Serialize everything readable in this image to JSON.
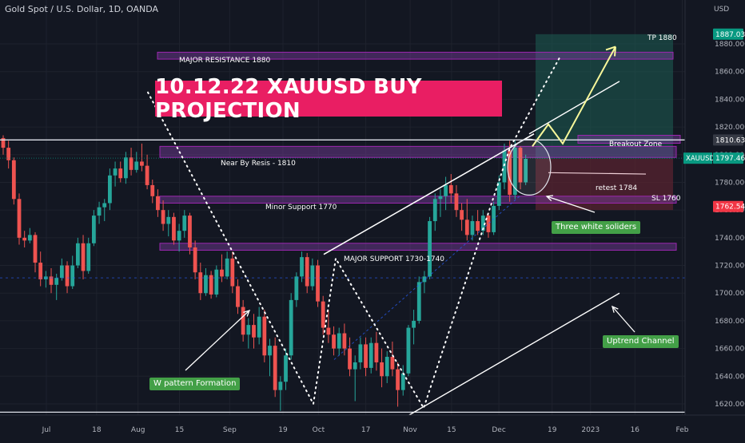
{
  "header": {
    "symbol_title": "Gold Spot / U.S. Dollar, 1D, OANDA"
  },
  "headline": "10.12.22 XAUUSD BUY PROJECTION",
  "price_axis": {
    "currency": "USD",
    "ticks": [
      1620,
      1640,
      1660,
      1680,
      1700,
      1720,
      1740,
      1760,
      1780,
      1800,
      1820,
      1840,
      1860,
      1880
    ],
    "tick_labels": [
      "1620.000",
      "1640.000",
      "1660.000",
      "1680.000",
      "1700.000",
      "1720.000",
      "1740.000",
      "1760.000",
      "1780.000",
      "1800.000",
      "1820.000",
      "1840.000",
      "1860.000",
      "1880.000"
    ],
    "badges": [
      {
        "label": "1887.030",
        "value": 1887.03,
        "color": "#089981"
      },
      {
        "label": "1810.630",
        "value": 1810.63,
        "color": "#363a45"
      },
      {
        "label": "1797.460",
        "value": 1797.46,
        "color": "#089981",
        "prefix": "XAUUSD"
      },
      {
        "label": "1762.546",
        "value": 1762.546,
        "color": "#f23645"
      }
    ]
  },
  "time_axis": {
    "labels": [
      {
        "label": "Jul",
        "day": 0
      },
      {
        "label": "18",
        "day": 17
      },
      {
        "label": "Aug",
        "day": 31
      },
      {
        "label": "15",
        "day": 45
      },
      {
        "label": "Sep",
        "day": 62
      },
      {
        "label": "19",
        "day": 80
      },
      {
        "label": "Oct",
        "day": 92
      },
      {
        "label": "17",
        "day": 108
      },
      {
        "label": "Nov",
        "day": 123
      },
      {
        "label": "15",
        "day": 137
      },
      {
        "label": "Dec",
        "day": 153
      },
      {
        "label": "19",
        "day": 171
      },
      {
        "label": "2023",
        "day": 184
      },
      {
        "label": "16",
        "day": 199
      },
      {
        "label": "Feb",
        "day": 215
      }
    ]
  },
  "annotations": {
    "major_resistance": "MAJOR RESISTANCE 1880",
    "near_by_resis": "Near By Resis - 1810",
    "minor_support": "Minor Support 1770",
    "major_support": "MAJOR SUPPORT 1730-1740",
    "breakout_zone": "Breakout Zone",
    "retest": "retest 1784",
    "tp": "TP 1880",
    "sl": "SL 1760",
    "three_white": "Three white soliders",
    "uptrend_channel": "Uptrend Channel",
    "w_pattern": "W pattern Formation"
  },
  "colors": {
    "background": "#131722",
    "bull": "#26a69a",
    "bear": "#ef5350",
    "zone_fill": "#7b3fa0",
    "zone_border": "#9c27b0",
    "headline_bg": "#e91e63",
    "label_green": "#43a047",
    "target_zone": "#1e5e54",
    "stop_zone": "#5c2430"
  },
  "chart_data": {
    "type": "candlestick",
    "title": "Gold Spot / U.S. Dollar, 1D, OANDA",
    "ylim": [
      1610,
      1895
    ],
    "x_unit": "trading sessions from Jul 1 2022",
    "zones": [
      {
        "name": "MAJOR RESISTANCE 1880",
        "low": 1869,
        "high": 1874
      },
      {
        "name": "Near By Resis - 1810",
        "low": 1798,
        "high": 1806
      },
      {
        "name": "Minor Support 1770",
        "low": 1765,
        "high": 1770
      },
      {
        "name": "MAJOR SUPPORT 1730-1740",
        "low": 1731,
        "high": 1736
      }
    ],
    "horizontal_lines": [
      1810.63,
      1614
    ],
    "targets": {
      "tp": 1880,
      "sl": 1760,
      "retest": 1784
    },
    "candles": [
      {
        "o": 1812,
        "h": 1814,
        "l": 1800,
        "c": 1805
      },
      {
        "o": 1805,
        "h": 1810,
        "l": 1790,
        "c": 1796
      },
      {
        "o": 1796,
        "h": 1798,
        "l": 1764,
        "c": 1768
      },
      {
        "o": 1768,
        "h": 1772,
        "l": 1735,
        "c": 1740
      },
      {
        "o": 1740,
        "h": 1745,
        "l": 1733,
        "c": 1738
      },
      {
        "o": 1738,
        "h": 1747,
        "l": 1736,
        "c": 1742
      },
      {
        "o": 1742,
        "h": 1744,
        "l": 1715,
        "c": 1722
      },
      {
        "o": 1722,
        "h": 1730,
        "l": 1705,
        "c": 1710
      },
      {
        "o": 1710,
        "h": 1716,
        "l": 1704,
        "c": 1712
      },
      {
        "o": 1712,
        "h": 1718,
        "l": 1700,
        "c": 1706
      },
      {
        "o": 1706,
        "h": 1714,
        "l": 1695,
        "c": 1711
      },
      {
        "o": 1711,
        "h": 1725,
        "l": 1709,
        "c": 1720
      },
      {
        "o": 1720,
        "h": 1723,
        "l": 1700,
        "c": 1705
      },
      {
        "o": 1705,
        "h": 1727,
        "l": 1703,
        "c": 1720
      },
      {
        "o": 1720,
        "h": 1740,
        "l": 1718,
        "c": 1736
      },
      {
        "o": 1736,
        "h": 1742,
        "l": 1710,
        "c": 1716
      },
      {
        "o": 1716,
        "h": 1740,
        "l": 1714,
        "c": 1736
      },
      {
        "o": 1736,
        "h": 1760,
        "l": 1734,
        "c": 1756
      },
      {
        "o": 1756,
        "h": 1766,
        "l": 1750,
        "c": 1762
      },
      {
        "o": 1762,
        "h": 1768,
        "l": 1752,
        "c": 1765
      },
      {
        "o": 1765,
        "h": 1790,
        "l": 1760,
        "c": 1785
      },
      {
        "o": 1785,
        "h": 1795,
        "l": 1777,
        "c": 1790
      },
      {
        "o": 1790,
        "h": 1795,
        "l": 1780,
        "c": 1783
      },
      {
        "o": 1783,
        "h": 1802,
        "l": 1779,
        "c": 1798
      },
      {
        "o": 1798,
        "h": 1805,
        "l": 1785,
        "c": 1789
      },
      {
        "o": 1789,
        "h": 1802,
        "l": 1787,
        "c": 1795
      },
      {
        "o": 1795,
        "h": 1808,
        "l": 1788,
        "c": 1792
      },
      {
        "o": 1792,
        "h": 1800,
        "l": 1775,
        "c": 1778
      },
      {
        "o": 1778,
        "h": 1782,
        "l": 1765,
        "c": 1770
      },
      {
        "o": 1770,
        "h": 1775,
        "l": 1755,
        "c": 1760
      },
      {
        "o": 1760,
        "h": 1767,
        "l": 1745,
        "c": 1750
      },
      {
        "o": 1750,
        "h": 1760,
        "l": 1741,
        "c": 1755
      },
      {
        "o": 1755,
        "h": 1758,
        "l": 1735,
        "c": 1738
      },
      {
        "o": 1738,
        "h": 1750,
        "l": 1730,
        "c": 1745
      },
      {
        "o": 1745,
        "h": 1760,
        "l": 1740,
        "c": 1756
      },
      {
        "o": 1756,
        "h": 1758,
        "l": 1728,
        "c": 1733
      },
      {
        "o": 1733,
        "h": 1738,
        "l": 1710,
        "c": 1715
      },
      {
        "o": 1715,
        "h": 1722,
        "l": 1695,
        "c": 1700
      },
      {
        "o": 1700,
        "h": 1718,
        "l": 1698,
        "c": 1713
      },
      {
        "o": 1713,
        "h": 1716,
        "l": 1696,
        "c": 1699
      },
      {
        "o": 1699,
        "h": 1720,
        "l": 1697,
        "c": 1717
      },
      {
        "o": 1717,
        "h": 1728,
        "l": 1708,
        "c": 1712
      },
      {
        "o": 1712,
        "h": 1730,
        "l": 1710,
        "c": 1725
      },
      {
        "o": 1725,
        "h": 1730,
        "l": 1700,
        "c": 1705
      },
      {
        "o": 1705,
        "h": 1710,
        "l": 1685,
        "c": 1690
      },
      {
        "o": 1690,
        "h": 1695,
        "l": 1665,
        "c": 1670
      },
      {
        "o": 1670,
        "h": 1682,
        "l": 1660,
        "c": 1677
      },
      {
        "o": 1677,
        "h": 1685,
        "l": 1660,
        "c": 1668
      },
      {
        "o": 1668,
        "h": 1690,
        "l": 1663,
        "c": 1683
      },
      {
        "o": 1683,
        "h": 1688,
        "l": 1650,
        "c": 1655
      },
      {
        "o": 1655,
        "h": 1667,
        "l": 1640,
        "c": 1662
      },
      {
        "o": 1662,
        "h": 1668,
        "l": 1625,
        "c": 1630
      },
      {
        "o": 1630,
        "h": 1640,
        "l": 1615,
        "c": 1636
      },
      {
        "o": 1636,
        "h": 1660,
        "l": 1630,
        "c": 1655
      },
      {
        "o": 1655,
        "h": 1700,
        "l": 1652,
        "c": 1695
      },
      {
        "o": 1695,
        "h": 1715,
        "l": 1690,
        "c": 1712
      },
      {
        "o": 1712,
        "h": 1730,
        "l": 1708,
        "c": 1726
      },
      {
        "o": 1726,
        "h": 1729,
        "l": 1700,
        "c": 1705
      },
      {
        "o": 1705,
        "h": 1725,
        "l": 1702,
        "c": 1720
      },
      {
        "o": 1720,
        "h": 1724,
        "l": 1690,
        "c": 1694
      },
      {
        "o": 1694,
        "h": 1698,
        "l": 1670,
        "c": 1675
      },
      {
        "o": 1675,
        "h": 1688,
        "l": 1664,
        "c": 1670
      },
      {
        "o": 1670,
        "h": 1676,
        "l": 1655,
        "c": 1660
      },
      {
        "o": 1660,
        "h": 1675,
        "l": 1655,
        "c": 1671
      },
      {
        "o": 1671,
        "h": 1678,
        "l": 1655,
        "c": 1660
      },
      {
        "o": 1660,
        "h": 1668,
        "l": 1640,
        "c": 1645
      },
      {
        "o": 1645,
        "h": 1655,
        "l": 1622,
        "c": 1650
      },
      {
        "o": 1650,
        "h": 1668,
        "l": 1645,
        "c": 1663
      },
      {
        "o": 1663,
        "h": 1668,
        "l": 1640,
        "c": 1646
      },
      {
        "o": 1646,
        "h": 1668,
        "l": 1642,
        "c": 1664
      },
      {
        "o": 1664,
        "h": 1672,
        "l": 1644,
        "c": 1650
      },
      {
        "o": 1650,
        "h": 1660,
        "l": 1632,
        "c": 1640
      },
      {
        "o": 1640,
        "h": 1658,
        "l": 1635,
        "c": 1654
      },
      {
        "o": 1654,
        "h": 1665,
        "l": 1640,
        "c": 1645
      },
      {
        "o": 1645,
        "h": 1650,
        "l": 1618,
        "c": 1630
      },
      {
        "o": 1630,
        "h": 1648,
        "l": 1626,
        "c": 1642
      },
      {
        "o": 1642,
        "h": 1677,
        "l": 1640,
        "c": 1675
      },
      {
        "o": 1675,
        "h": 1688,
        "l": 1663,
        "c": 1680
      },
      {
        "o": 1680,
        "h": 1712,
        "l": 1678,
        "c": 1708
      },
      {
        "o": 1708,
        "h": 1716,
        "l": 1700,
        "c": 1712
      },
      {
        "o": 1712,
        "h": 1755,
        "l": 1710,
        "c": 1752
      },
      {
        "o": 1752,
        "h": 1772,
        "l": 1745,
        "c": 1768
      },
      {
        "o": 1768,
        "h": 1775,
        "l": 1755,
        "c": 1770
      },
      {
        "o": 1770,
        "h": 1784,
        "l": 1760,
        "c": 1778
      },
      {
        "o": 1778,
        "h": 1786,
        "l": 1765,
        "c": 1772
      },
      {
        "o": 1772,
        "h": 1778,
        "l": 1755,
        "c": 1760
      },
      {
        "o": 1760,
        "h": 1765,
        "l": 1745,
        "c": 1753
      },
      {
        "o": 1753,
        "h": 1768,
        "l": 1738,
        "c": 1742
      },
      {
        "o": 1742,
        "h": 1756,
        "l": 1738,
        "c": 1752
      },
      {
        "o": 1752,
        "h": 1760,
        "l": 1742,
        "c": 1745
      },
      {
        "o": 1745,
        "h": 1760,
        "l": 1742,
        "c": 1756
      },
      {
        "o": 1756,
        "h": 1758,
        "l": 1740,
        "c": 1744
      },
      {
        "o": 1744,
        "h": 1766,
        "l": 1742,
        "c": 1763
      },
      {
        "o": 1763,
        "h": 1785,
        "l": 1760,
        "c": 1780
      },
      {
        "o": 1780,
        "h": 1808,
        "l": 1775,
        "c": 1803
      },
      {
        "o": 1803,
        "h": 1810,
        "l": 1766,
        "c": 1771
      },
      {
        "o": 1771,
        "h": 1810,
        "l": 1768,
        "c": 1805
      },
      {
        "o": 1805,
        "h": 1806,
        "l": 1775,
        "c": 1780
      },
      {
        "o": 1780,
        "h": 1800,
        "l": 1778,
        "c": 1797
      }
    ]
  }
}
